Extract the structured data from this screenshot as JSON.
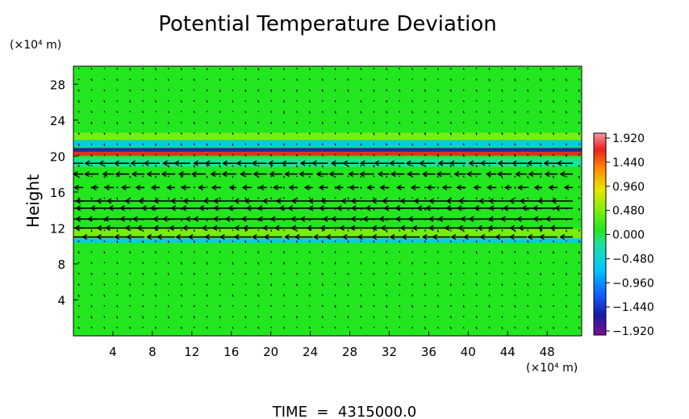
{
  "chart_data": {
    "type": "heatmap",
    "title": "Potential Temperature Deviation",
    "xlabel": "",
    "ylabel": "Height",
    "x_unit": "(×10⁴ m)",
    "y_unit": "(×10⁴ m)",
    "xlim": [
      0,
      51.5
    ],
    "ylim": [
      0,
      30
    ],
    "x_ticks": [
      "4",
      "8",
      "12",
      "16",
      "20",
      "24",
      "28",
      "32",
      "36",
      "40",
      "44",
      "48"
    ],
    "y_ticks": [
      "4",
      "8",
      "12",
      "16",
      "20",
      "24",
      "28"
    ],
    "colorbar": {
      "labels": [
        "1.920",
        "1.440",
        "0.960",
        "0.480",
        "0.000",
        "−0.480",
        "−0.960",
        "−1.440",
        "−1.920"
      ],
      "range": [
        -1.92,
        1.92
      ]
    },
    "background_value": 0.0,
    "bands": [
      {
        "y": 20.3,
        "half_width": 0.25,
        "value": 1.6
      },
      {
        "y": 20.7,
        "half_width": 0.2,
        "value": -1.7
      },
      {
        "y": 21.4,
        "half_width": 0.35,
        "value": -0.7
      },
      {
        "y": 19.3,
        "half_width": 0.5,
        "value": -0.4
      },
      {
        "y": 22.2,
        "half_width": 0.4,
        "value": 0.45
      },
      {
        "y": 11.3,
        "half_width": 0.6,
        "value": 0.5
      },
      {
        "y": 10.6,
        "half_width": 0.25,
        "value": -0.5
      }
    ],
    "wind_levels": [
      {
        "y": 19.2,
        "u": -1.6
      },
      {
        "y": 18.0,
        "u": -1.4
      },
      {
        "y": 16.5,
        "u": -0.9
      },
      {
        "y": 15.0,
        "u": -2.3
      },
      {
        "y": 14.2,
        "u": -2.5
      },
      {
        "y": 13.0,
        "u": -2.8
      },
      {
        "y": 12.0,
        "u": -2.4
      },
      {
        "y": 11.0,
        "u": -1.8
      }
    ],
    "time_label": "TIME  =  4315000.0"
  }
}
